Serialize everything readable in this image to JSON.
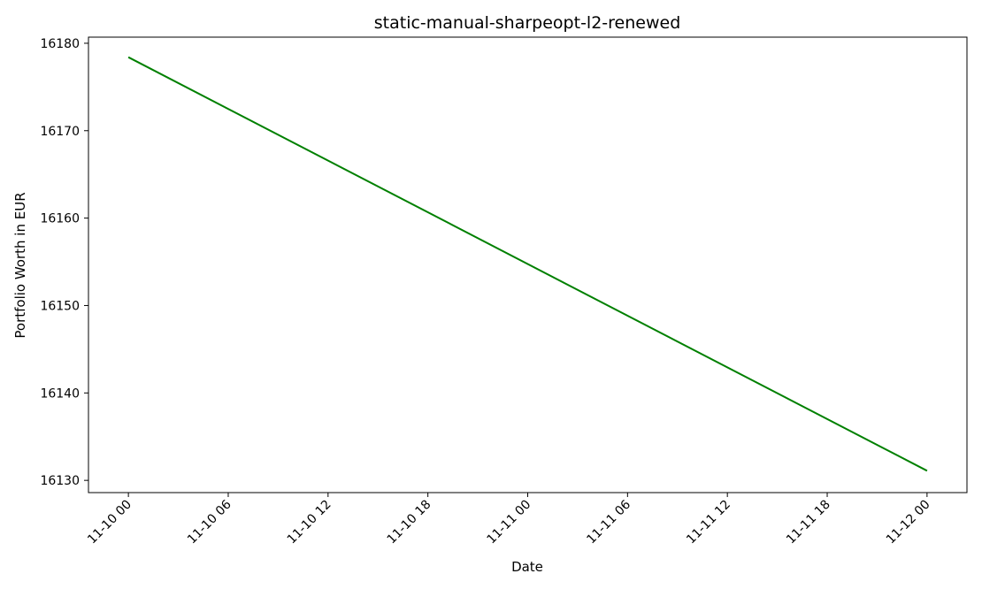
{
  "chart_data": {
    "type": "line",
    "title": "static-manual-sharpeopt-l2-renewed",
    "xlabel": "Date",
    "ylabel": "Portfolio Worth in EUR",
    "x_ticks": [
      "11-10 00",
      "11-10 06",
      "11-10 12",
      "11-10 18",
      "11-11 00",
      "11-11 06",
      "11-11 12",
      "11-11 18",
      "11-12 00"
    ],
    "y_ticks": [
      16130,
      16140,
      16150,
      16160,
      16170,
      16180
    ],
    "xlim": [
      "11-09 21:36",
      "11-12 02:24"
    ],
    "ylim": [
      16128.6,
      16180.7
    ],
    "grid": false,
    "series": [
      {
        "color": "#008000",
        "x": [
          "11-10 00",
          "11-12 00"
        ],
        "values": [
          16178.4,
          16131.1
        ]
      }
    ]
  }
}
